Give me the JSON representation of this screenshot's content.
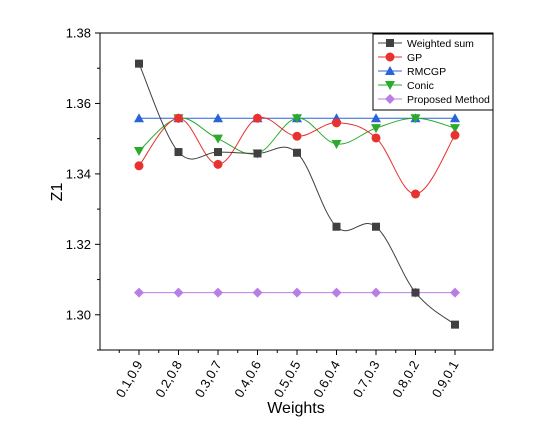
{
  "chart_data": {
    "type": "line",
    "xlabel": "Weights",
    "ylabel": "Z1",
    "ylim": [
      1.29,
      1.38
    ],
    "yticks": [
      "1.30",
      "1.32",
      "1.34",
      "1.36",
      "1.38"
    ],
    "categories": [
      "0.1,0.9",
      "0.2,0.8",
      "0.3,0.7",
      "0.4,0.6",
      "0.5,0.5",
      "0.6,0.4",
      "0.7,0.3",
      "0.8,0.2",
      "0.9,0.1"
    ],
    "legend_position": "top-right",
    "grid": false,
    "series": [
      {
        "name": "Weighted sum",
        "color": "#404040",
        "marker": "square",
        "values": [
          1.3713,
          1.3462,
          1.3462,
          1.3458,
          1.346,
          1.325,
          1.325,
          1.3063,
          1.2972
        ]
      },
      {
        "name": "GP",
        "color": "#e8322f",
        "marker": "circle",
        "values": [
          1.3423,
          1.3558,
          1.3427,
          1.3558,
          1.3507,
          1.3545,
          1.3502,
          1.3343,
          1.351
        ]
      },
      {
        "name": "RMCGP",
        "color": "#2864d8",
        "marker": "triangle-up",
        "values": [
          1.3558,
          1.3558,
          1.3558,
          1.3558,
          1.3558,
          1.3558,
          1.3558,
          1.3558,
          1.3558
        ]
      },
      {
        "name": "Conic",
        "color": "#2caa2c",
        "marker": "triangle-down",
        "values": [
          1.3465,
          1.3558,
          1.35,
          1.3458,
          1.3558,
          1.3485,
          1.353,
          1.3558,
          1.353
        ]
      },
      {
        "name": "Proposed Method",
        "color": "#b87ee6",
        "marker": "diamond",
        "values": [
          1.3063,
          1.3063,
          1.3063,
          1.3063,
          1.3063,
          1.3063,
          1.3063,
          1.3063,
          1.3063
        ]
      }
    ]
  }
}
